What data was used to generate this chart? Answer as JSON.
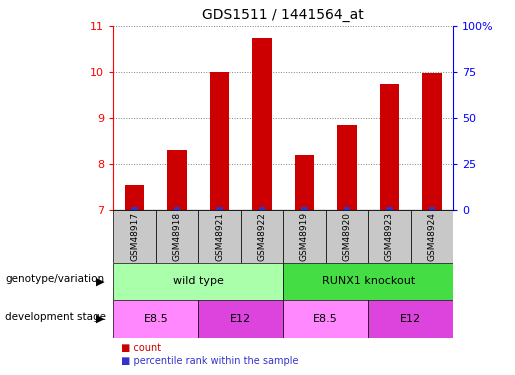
{
  "title": "GDS1511 / 1441564_at",
  "samples": [
    "GSM48917",
    "GSM48918",
    "GSM48921",
    "GSM48922",
    "GSM48919",
    "GSM48920",
    "GSM48923",
    "GSM48924"
  ],
  "count_values": [
    7.55,
    8.3,
    10.0,
    10.75,
    8.2,
    8.85,
    9.75,
    9.98
  ],
  "bar_bottom": 7.0,
  "ylim_left": [
    7.0,
    11.0
  ],
  "ylim_right": [
    0,
    100
  ],
  "yticks_left": [
    7,
    8,
    9,
    10,
    11
  ],
  "yticks_right": [
    0,
    25,
    50,
    75,
    100
  ],
  "yticklabels_right": [
    "0",
    "25",
    "50",
    "75",
    "100%"
  ],
  "bar_color_red": "#CC0000",
  "bar_color_blue": "#3333CC",
  "genotype_groups": [
    {
      "label": "wild type",
      "start": 0,
      "end": 4,
      "color": "#AAFFAA"
    },
    {
      "label": "RUNX1 knockout",
      "start": 4,
      "end": 8,
      "color": "#44DD44"
    }
  ],
  "development_groups": [
    {
      "label": "E8.5",
      "start": 0,
      "end": 2,
      "color": "#FF88FF"
    },
    {
      "label": "E12",
      "start": 2,
      "end": 4,
      "color": "#DD44DD"
    },
    {
      "label": "E8.5",
      "start": 4,
      "end": 6,
      "color": "#FF88FF"
    },
    {
      "label": "E12",
      "start": 6,
      "end": 8,
      "color": "#DD44DD"
    }
  ],
  "sample_bg_color": "#C8C8C8",
  "legend_count_label": "count",
  "legend_percentile_label": "percentile rank within the sample",
  "genotype_label": "genotype/variation",
  "development_label": "development stage"
}
